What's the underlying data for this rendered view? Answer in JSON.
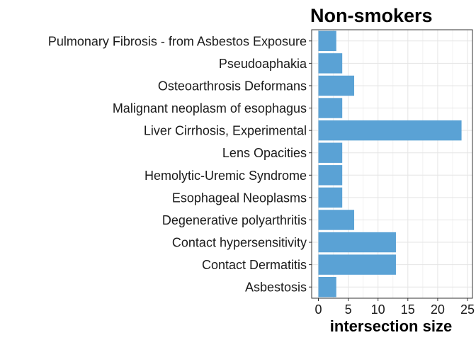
{
  "chart_data": {
    "type": "bar",
    "orientation": "horizontal",
    "title": "Non-smokers",
    "xlabel": "intersection size",
    "ylabel": "",
    "categories": [
      "Pulmonary Fibrosis - from Asbestos Exposure",
      "Pseudoaphakia",
      "Osteoarthrosis Deformans",
      "Malignant neoplasm of esophagus",
      "Liver Cirrhosis, Experimental",
      "Lens Opacities",
      "Hemolytic-Uremic Syndrome",
      "Esophageal Neoplasms",
      "Degenerative polyarthritis",
      "Contact hypersensitivity",
      "Contact Dermatitis",
      "Asbestosis"
    ],
    "values": [
      3,
      4,
      6,
      4,
      24,
      4,
      4,
      4,
      6,
      13,
      13,
      3
    ],
    "xlim": [
      0,
      25
    ],
    "xticks": [
      "0",
      "5",
      "10",
      "15",
      "20",
      "25"
    ],
    "bar_color": "#5aa2d5",
    "grid": true,
    "legend": "none"
  }
}
